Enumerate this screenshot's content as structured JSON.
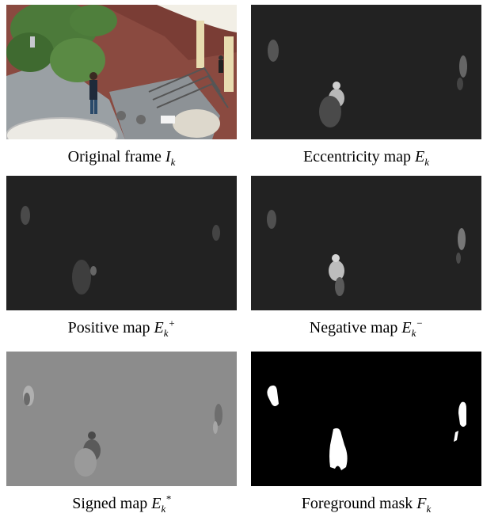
{
  "figure": {
    "panels": [
      {
        "id": "original",
        "caption_text": "Original frame ",
        "symbol": "I",
        "sub": "k",
        "sup": ""
      },
      {
        "id": "eccentricity",
        "caption_text": "Eccentricity map ",
        "symbol": "E",
        "sub": "k",
        "sup": ""
      },
      {
        "id": "positive",
        "caption_text": "Positive map ",
        "symbol": "E",
        "sub": "k",
        "sup": "+"
      },
      {
        "id": "negative",
        "caption_text": "Negative map ",
        "symbol": "E",
        "sub": "k",
        "sup": "−"
      },
      {
        "id": "signed",
        "caption_text": "Signed map ",
        "symbol": "E",
        "sub": "k",
        "sup": "*"
      },
      {
        "id": "foreground",
        "caption_text": "Foreground mask ",
        "symbol": "F",
        "sub": "k",
        "sup": ""
      }
    ]
  },
  "colors": {
    "dark_map_bg": "#222222",
    "signed_bg": "#8c8c8c",
    "mask_bg": "#000000",
    "mask_fg": "#ffffff",
    "floor_brick": "#8a4a40",
    "foliage": "#4c7a3a"
  }
}
